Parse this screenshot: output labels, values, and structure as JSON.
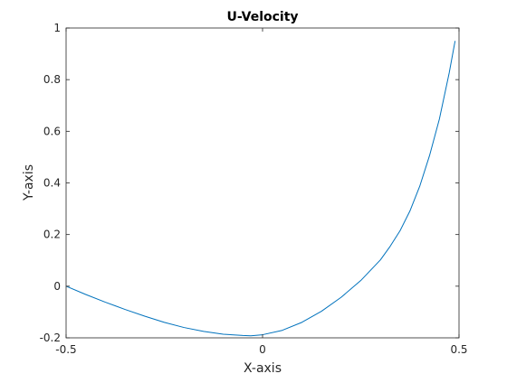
{
  "chart_data": {
    "type": "line",
    "title": "U-Velocity",
    "xlabel": "X-axis",
    "ylabel": "Y-axis",
    "xlim": [
      -0.5,
      0.5
    ],
    "ylim": [
      -0.2,
      1
    ],
    "xticks": [
      -0.5,
      0,
      0.5
    ],
    "xtick_labels": [
      "-0.5",
      "0",
      "0.5"
    ],
    "yticks": [
      -0.2,
      0,
      0.2,
      0.4,
      0.6,
      0.8,
      1
    ],
    "ytick_labels": [
      "-0.2",
      "0",
      "0.2",
      "0.4",
      "0.6",
      "0.8",
      "1"
    ],
    "grid": false,
    "box": true,
    "series": [
      {
        "color": "#0072BD",
        "x": [
          -0.5,
          -0.45,
          -0.4,
          -0.35,
          -0.3,
          -0.25,
          -0.2,
          -0.15,
          -0.1,
          -0.05,
          -0.03,
          0.0,
          0.05,
          0.1,
          0.15,
          0.2,
          0.25,
          0.3,
          0.325,
          0.35,
          0.375,
          0.4,
          0.425,
          0.45,
          0.475,
          0.49
        ],
        "y": [
          0.0,
          -0.032,
          -0.062,
          -0.09,
          -0.116,
          -0.14,
          -0.16,
          -0.175,
          -0.186,
          -0.191,
          -0.192,
          -0.188,
          -0.171,
          -0.14,
          -0.097,
          -0.043,
          0.022,
          0.102,
          0.155,
          0.215,
          0.291,
          0.387,
          0.506,
          0.647,
          0.826,
          0.95
        ]
      }
    ]
  }
}
